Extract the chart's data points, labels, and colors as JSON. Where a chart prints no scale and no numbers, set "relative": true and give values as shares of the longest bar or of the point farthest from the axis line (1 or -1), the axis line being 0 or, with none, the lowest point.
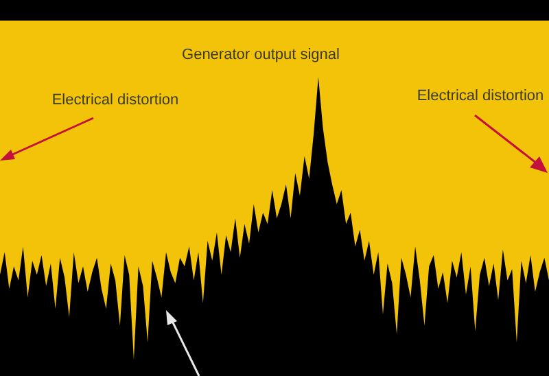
{
  "chart_data": {
    "type": "area",
    "title": "Generator output signal",
    "relative": true,
    "annotations": [
      "Electrical distortion",
      "Electrical distortion"
    ],
    "categories": [
      null,
      null,
      null,
      null,
      null,
      null,
      null,
      null,
      null,
      null,
      null,
      null,
      null,
      null,
      null,
      null,
      null,
      null,
      null,
      null,
      null,
      null,
      null,
      null,
      null,
      null,
      null,
      null,
      null,
      null,
      null,
      null,
      null,
      null,
      null,
      null,
      null,
      null,
      null,
      null,
      null,
      null,
      null,
      null,
      null,
      null,
      null,
      null,
      null,
      null,
      null,
      null,
      null,
      null,
      null,
      null,
      null,
      null,
      null,
      null,
      null,
      null,
      null,
      null,
      null,
      null,
      null,
      null,
      null,
      null,
      null,
      null,
      null,
      null,
      null,
      null,
      null,
      null,
      null,
      null,
      null,
      null,
      null,
      null,
      null,
      null,
      null,
      null,
      null,
      null,
      null,
      null,
      null,
      null,
      null,
      null,
      null,
      null,
      null,
      null,
      null,
      null,
      null,
      null,
      null,
      null,
      null,
      null,
      null,
      null,
      null,
      null,
      null,
      null,
      null,
      null,
      null,
      null,
      null,
      null
    ],
    "series": [
      {
        "color": "#000000",
        "values": [
          0.3,
          0.38,
          0.25,
          0.33,
          0.28,
          0.4,
          0.22,
          0.35,
          0.3,
          0.37,
          0.26,
          0.34,
          0.18,
          0.36,
          0.29,
          0.15,
          0.38,
          0.27,
          0.33,
          0.24,
          0.31,
          0.36,
          0.25,
          0.18,
          0.34,
          0.28,
          0.12,
          0.37,
          0.3,
          0.0,
          0.33,
          0.26,
          0.06,
          0.35,
          0.29,
          0.22,
          0.38,
          0.31,
          0.27,
          0.36,
          0.33,
          0.4,
          0.28,
          0.38,
          0.2,
          0.42,
          0.35,
          0.45,
          0.3,
          0.44,
          0.38,
          0.5,
          0.36,
          0.48,
          0.41,
          0.55,
          0.45,
          0.52,
          0.48,
          0.6,
          0.5,
          0.55,
          0.62,
          0.5,
          0.66,
          0.58,
          0.72,
          0.64,
          0.8,
          1.0,
          0.82,
          0.7,
          0.62,
          0.55,
          0.6,
          0.48,
          0.52,
          0.4,
          0.46,
          0.35,
          0.42,
          0.3,
          0.38,
          0.16,
          0.34,
          0.27,
          0.09,
          0.36,
          0.3,
          0.22,
          0.4,
          0.28,
          0.12,
          0.33,
          0.37,
          0.25,
          0.31,
          0.2,
          0.35,
          0.29,
          0.38,
          0.23,
          0.33,
          0.1,
          0.3,
          0.36,
          0.26,
          0.34,
          0.21,
          0.39,
          0.28,
          0.32,
          0.06,
          0.35,
          0.27,
          0.37,
          0.24,
          0.31,
          0.36,
          0.28
        ]
      }
    ]
  }
}
